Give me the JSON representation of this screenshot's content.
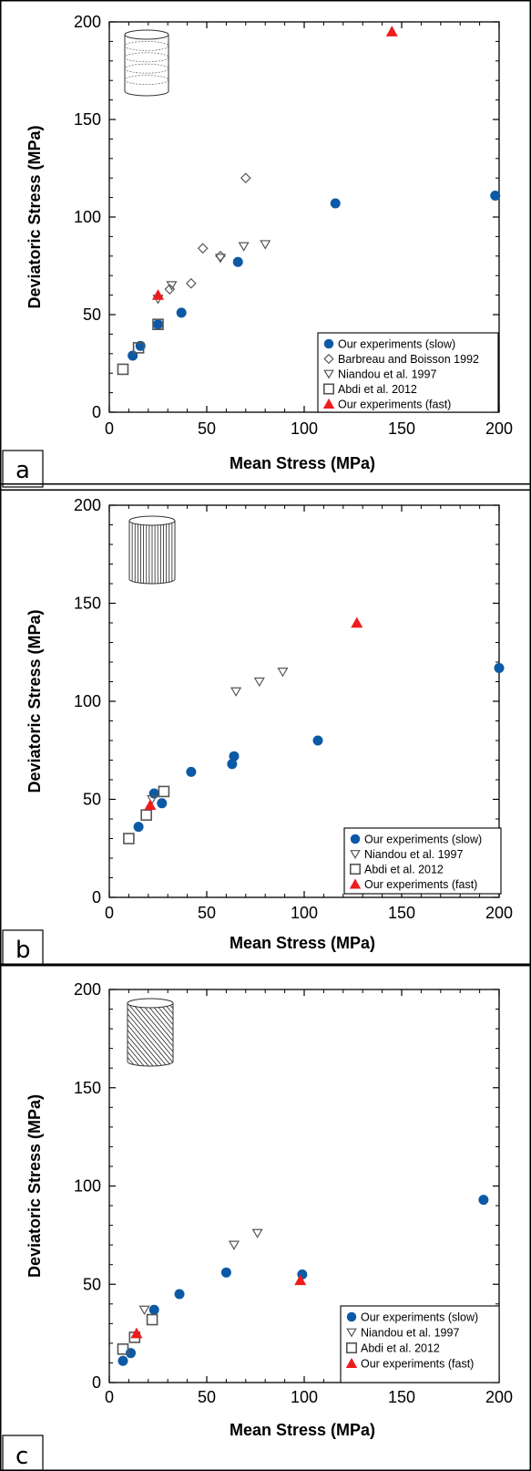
{
  "colors": {
    "slow": "#0c5aa6",
    "fast": "#ee1c1c",
    "open": "#555555"
  },
  "chart_data": [
    {
      "type": "scatter",
      "panel_label": "a",
      "icon": "cylinder-horizontal-layers-icon",
      "xlabel": "Mean Stress (MPa)",
      "ylabel": "Deviatoric Stress (MPa)",
      "xlim": [
        0,
        200
      ],
      "ylim": [
        0,
        200
      ],
      "xticks": [
        "0",
        "50",
        "100",
        "150",
        "200"
      ],
      "yticks": [
        "0",
        "50",
        "100",
        "150",
        "200"
      ],
      "grid": false,
      "legend_placement": "bottom-right",
      "series": [
        {
          "name": "Our experiments (slow)",
          "marker": "filled-circle",
          "points": [
            [
              12,
              29
            ],
            [
              16,
              34
            ],
            [
              25,
              45
            ],
            [
              37,
              51
            ],
            [
              66,
              77
            ],
            [
              116,
              107
            ],
            [
              198,
              111
            ]
          ]
        },
        {
          "name": "Barbreau and Boisson 1992",
          "marker": "open-diamond",
          "points": [
            [
              31,
              63
            ],
            [
              42,
              66
            ],
            [
              48,
              84
            ],
            [
              57,
              80
            ],
            [
              70,
              120
            ]
          ]
        },
        {
          "name": "Niandou et al. 1997",
          "marker": "open-triangle-down",
          "points": [
            [
              25,
              58
            ],
            [
              32,
              65
            ],
            [
              57,
              79
            ],
            [
              69,
              85
            ],
            [
              80,
              86
            ]
          ]
        },
        {
          "name": "Abdi et al. 2012",
          "marker": "open-square",
          "points": [
            [
              7,
              22
            ],
            [
              15,
              33
            ],
            [
              25,
              45
            ]
          ]
        },
        {
          "name": "Our experiments (fast)",
          "marker": "filled-triangle-up",
          "points": [
            [
              25,
              60
            ],
            [
              145,
              195
            ]
          ]
        }
      ]
    },
    {
      "type": "scatter",
      "panel_label": "b",
      "icon": "cylinder-vertical-layers-icon",
      "xlabel": "Mean Stress (MPa)",
      "ylabel": "Deviatoric Stress (MPa)",
      "xlim": [
        0,
        200
      ],
      "ylim": [
        0,
        200
      ],
      "xticks": [
        "0",
        "50",
        "100",
        "150",
        "200"
      ],
      "yticks": [
        "0",
        "50",
        "100",
        "150",
        "200"
      ],
      "grid": false,
      "legend_placement": "bottom-right",
      "series": [
        {
          "name": "Our experiments (slow)",
          "marker": "filled-circle",
          "points": [
            [
              15,
              36
            ],
            [
              23,
              53
            ],
            [
              27,
              48
            ],
            [
              42,
              64
            ],
            [
              63,
              68
            ],
            [
              64,
              72
            ],
            [
              107,
              80
            ],
            [
              200,
              117
            ]
          ]
        },
        {
          "name": "Niandou et al. 1997",
          "marker": "open-triangle-down",
          "points": [
            [
              22,
              50
            ],
            [
              65,
              105
            ],
            [
              77,
              110
            ],
            [
              89,
              115
            ]
          ]
        },
        {
          "name": "Abdi et al. 2012",
          "marker": "open-square",
          "points": [
            [
              10,
              30
            ],
            [
              19,
              42
            ],
            [
              28,
              54
            ]
          ]
        },
        {
          "name": "Our experiments (fast)",
          "marker": "filled-triangle-up",
          "points": [
            [
              21,
              47
            ],
            [
              127,
              140
            ]
          ]
        }
      ]
    },
    {
      "type": "scatter",
      "panel_label": "c",
      "icon": "cylinder-diagonal-layers-icon",
      "xlabel": "Mean Stress (MPa)",
      "ylabel": "Deviatoric Stress (MPa)",
      "xlim": [
        0,
        200
      ],
      "ylim": [
        0,
        200
      ],
      "xticks": [
        "0",
        "50",
        "100",
        "150",
        "200"
      ],
      "yticks": [
        "0",
        "50",
        "100",
        "150",
        "200"
      ],
      "grid": false,
      "legend_placement": "bottom-right",
      "series": [
        {
          "name": "Our experiments (slow)",
          "marker": "filled-circle",
          "points": [
            [
              7,
              11
            ],
            [
              11,
              15
            ],
            [
              23,
              37
            ],
            [
              36,
              45
            ],
            [
              60,
              56
            ],
            [
              99,
              55
            ],
            [
              192,
              93
            ]
          ]
        },
        {
          "name": "Niandou et al. 1997",
          "marker": "open-triangle-down",
          "points": [
            [
              18,
              37
            ],
            [
              64,
              70
            ],
            [
              76,
              76
            ]
          ]
        },
        {
          "name": "Abdi et al. 2012",
          "marker": "open-square",
          "points": [
            [
              7,
              17
            ],
            [
              13,
              23
            ],
            [
              22,
              32
            ]
          ]
        },
        {
          "name": "Our experiments (fast)",
          "marker": "filled-triangle-up",
          "points": [
            [
              14,
              25
            ],
            [
              98,
              52
            ]
          ]
        }
      ]
    }
  ]
}
